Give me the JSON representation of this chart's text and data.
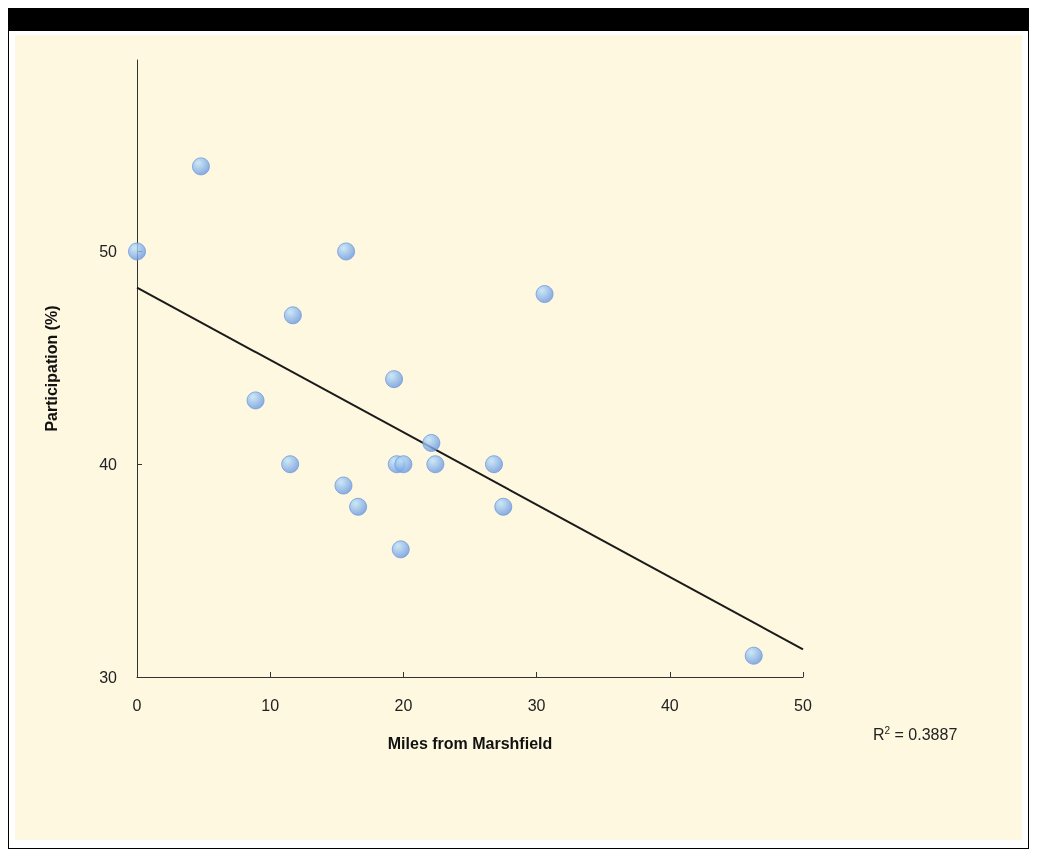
{
  "chart_data": {
    "type": "scatter",
    "xlabel": "Miles from Marshfield",
    "ylabel": "Participation (%)",
    "x": [
      4.8,
      0,
      15.7,
      30.6,
      11.7,
      19.3,
      8.9,
      22.1,
      11.5,
      19.5,
      20.0,
      22.4,
      26.8,
      15.5,
      16.6,
      27.5,
      19.8,
      46.3
    ],
    "series": [
      {
        "color": "#6f9ae0",
        "marker": "circle",
        "values": [
          54,
          50,
          50,
          48,
          47,
          44,
          43,
          41,
          40,
          40,
          40,
          40,
          40,
          39,
          38,
          38,
          36,
          31
        ]
      },
      {
        "type": "line",
        "color": "#1a1a1a",
        "marker": "none",
        "x": [
          0,
          50
        ],
        "values": [
          48.3,
          31.3
        ]
      }
    ],
    "xlim": [
      0,
      50
    ],
    "xticks": [
      0,
      10,
      20,
      30,
      40,
      50
    ],
    "ylim": [
      30,
      59
    ],
    "yticks": [
      30,
      40,
      50
    ],
    "grid": false,
    "annotations": [
      "R$^{2}$ = 0.3887"
    ]
  }
}
